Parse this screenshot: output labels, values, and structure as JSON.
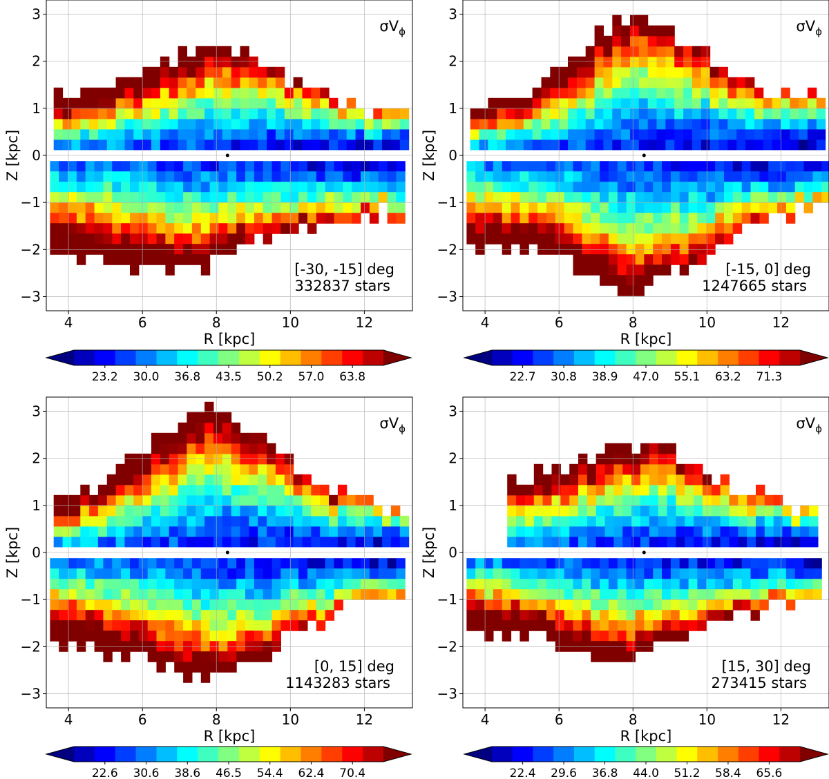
{
  "chart_data": [
    {
      "type": "heatmap",
      "quantity_label": "σV",
      "quantity_subscript": "ϕ",
      "xlabel": "R [kpc]",
      "ylabel": "Z [kpc]",
      "xlim": [
        3.4,
        13.3
      ],
      "ylim": [
        -3.3,
        3.3
      ],
      "x_ticks": [
        4,
        6,
        8,
        10,
        12
      ],
      "y_ticks": [
        3,
        2,
        1,
        0,
        -1,
        -2,
        -3
      ],
      "y_tick_labels": [
        "3",
        "2",
        "1",
        "0",
        "−1",
        "−2",
        "−3"
      ],
      "grid": true,
      "angle_range": "[-30, -15] deg",
      "star_count": "332837 stars",
      "colorbar_ticks": [
        "23.2",
        "30.0",
        "36.8",
        "43.5",
        "50.2",
        "57.0",
        "63.8"
      ],
      "color_min": 20.0,
      "color_max": 67.0,
      "sun_marker": {
        "R": 8.3,
        "Z": 0.0
      },
      "top_lobe": {
        "z_inner": 0.12,
        "z_outer_near": 1.15,
        "z_outer_far": 0.75,
        "r_start": 3.6,
        "r_end": 13.2,
        "r_peak": 7.8,
        "z_peak": 2.2
      },
      "bottom_lobe": {
        "z_inner": -0.12,
        "z_outer_near": -2.0,
        "z_outer_far": -1.05,
        "r_start": 3.5,
        "r_end": 13.0,
        "r_peak": 6.5,
        "z_peak": -2.3
      }
    },
    {
      "type": "heatmap",
      "quantity_label": "σV",
      "quantity_subscript": "ϕ",
      "xlabel": "R [kpc]",
      "ylabel": "Z [kpc]",
      "xlim": [
        3.4,
        13.3
      ],
      "ylim": [
        -3.3,
        3.3
      ],
      "x_ticks": [
        4,
        6,
        8,
        10,
        12
      ],
      "y_ticks": [
        3,
        2,
        1,
        0,
        -1,
        -2,
        -3
      ],
      "y_tick_labels": [
        "3",
        "2",
        "1",
        "0",
        "−1",
        "−2",
        "−3"
      ],
      "grid": true,
      "angle_range": "[-15, 0] deg",
      "star_count": "1247665 stars",
      "colorbar_ticks": [
        "22.7",
        "30.8",
        "38.9",
        "47.0",
        "55.1",
        "63.2",
        "71.3"
      ],
      "color_min": 18.0,
      "color_max": 75.0,
      "sun_marker": {
        "R": 8.3,
        "Z": 0.0
      },
      "top_lobe": {
        "z_inner": 0.12,
        "z_outer_near": 1.0,
        "z_outer_far": 1.1,
        "r_start": 3.6,
        "r_end": 13.2,
        "r_peak": 8.0,
        "z_peak": 2.8
      },
      "bottom_lobe": {
        "z_inner": -0.12,
        "z_outer_near": -1.9,
        "z_outer_far": -0.9,
        "r_start": 3.5,
        "r_end": 13.2,
        "r_peak": 8.0,
        "z_peak": -2.7
      }
    },
    {
      "type": "heatmap",
      "quantity_label": "σV",
      "quantity_subscript": "ϕ",
      "xlabel": "R [kpc]",
      "ylabel": "Z [kpc]",
      "xlim": [
        3.4,
        13.3
      ],
      "ylim": [
        -3.3,
        3.3
      ],
      "x_ticks": [
        4,
        6,
        8,
        10,
        12
      ],
      "y_ticks": [
        3,
        2,
        1,
        0,
        -1,
        -2,
        -3
      ],
      "y_tick_labels": [
        "3",
        "2",
        "1",
        "0",
        "−1",
        "−2",
        "−3"
      ],
      "grid": true,
      "angle_range": "[0, 15] deg",
      "star_count": "1143283 stars",
      "colorbar_ticks": [
        "22.6",
        "30.6",
        "38.6",
        "46.5",
        "54.4",
        "62.4",
        "70.4"
      ],
      "color_min": 18.0,
      "color_max": 74.0,
      "sun_marker": {
        "R": 8.3,
        "Z": 0.0
      },
      "top_lobe": {
        "z_inner": 0.12,
        "z_outer_near": 1.05,
        "z_outer_far": 0.9,
        "r_start": 3.6,
        "r_end": 13.2,
        "r_peak": 7.7,
        "z_peak": 2.9
      },
      "bottom_lobe": {
        "z_inner": -0.12,
        "z_outer_near": -1.9,
        "z_outer_far": -0.85,
        "r_start": 3.5,
        "r_end": 13.1,
        "r_peak": 7.6,
        "z_peak": -2.6
      }
    },
    {
      "type": "heatmap",
      "quantity_label": "σV",
      "quantity_subscript": "ϕ",
      "xlabel": "R [kpc]",
      "ylabel": "Z [kpc]",
      "xlim": [
        3.4,
        13.3
      ],
      "ylim": [
        -3.3,
        3.3
      ],
      "x_ticks": [
        4,
        6,
        8,
        10,
        12
      ],
      "y_ticks": [
        3,
        2,
        1,
        0,
        -1,
        -2,
        -3
      ],
      "y_tick_labels": [
        "3",
        "2",
        "1",
        "0",
        "−1",
        "−2",
        "−3"
      ],
      "grid": true,
      "angle_range": "[15, 30] deg",
      "star_count": "273415 stars",
      "colorbar_ticks": [
        "22.4",
        "29.6",
        "36.8",
        "44.0",
        "51.2",
        "58.4",
        "65.6"
      ],
      "color_min": 19.0,
      "color_max": 69.0,
      "sun_marker": {
        "R": 8.3,
        "Z": 0.0
      },
      "top_lobe": {
        "z_inner": 0.12,
        "z_outer_near": 1.4,
        "z_outer_far": 0.8,
        "r_start": 4.6,
        "r_end": 13.0,
        "r_peak": 8.0,
        "z_peak": 2.2
      },
      "bottom_lobe": {
        "z_inner": -0.12,
        "z_outer_near": -1.6,
        "z_outer_far": -0.85,
        "r_start": 3.5,
        "r_end": 13.1,
        "r_peak": 7.6,
        "z_peak": -2.1
      }
    }
  ]
}
